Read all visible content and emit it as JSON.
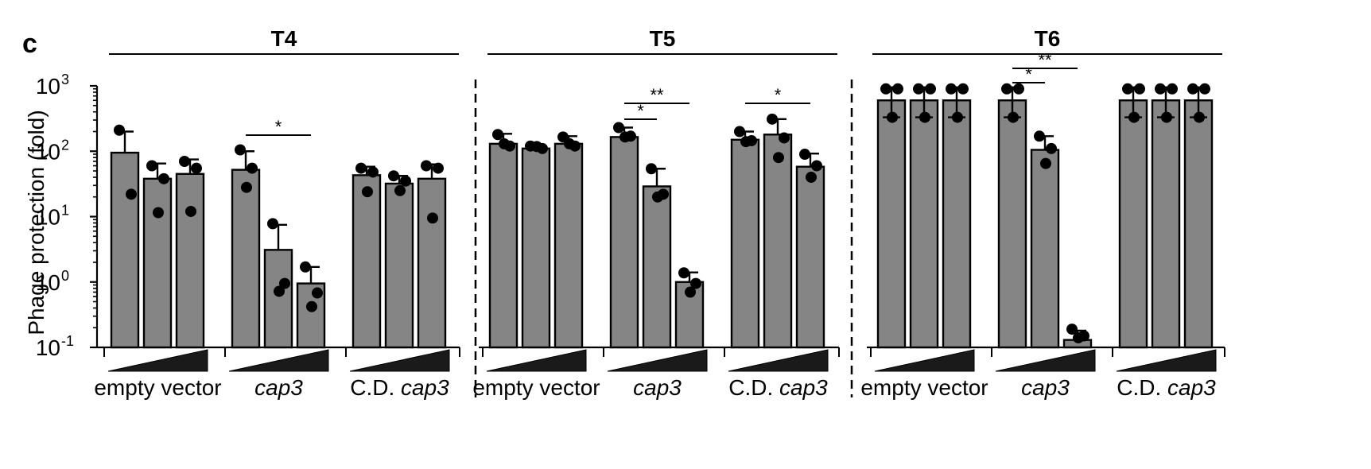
{
  "panel_letter": "c",
  "ylabel": "Phage protection (fold)",
  "ytick_labels": [
    {
      "base": "10",
      "exp": "3"
    },
    {
      "base": "10",
      "exp": "2"
    },
    {
      "base": "10",
      "exp": "1"
    },
    {
      "base": "10",
      "exp": "0"
    },
    {
      "base": "10",
      "exp": "-1"
    }
  ],
  "colors": {
    "bar": "#858585",
    "outline": "#000000",
    "wedge": "#1a1a1a"
  },
  "chart_data": {
    "type": "bar",
    "yscale": "log",
    "ylim": [
      0.1,
      1000
    ],
    "yticks": [
      1000,
      100,
      10,
      1,
      0.1
    ],
    "ylabel": "Phage protection (fold)",
    "panels": [
      {
        "title": "T4",
        "groups": [
          {
            "label_plain": "empty vector",
            "label_italic": "",
            "bars": [
              {
                "mean": 95,
                "err_hi": 200,
                "points": [
                  210,
                  22
                ]
              },
              {
                "mean": 38,
                "err_hi": 65,
                "points": [
                  60,
                  38,
                  11.5
                ]
              },
              {
                "mean": 45,
                "err_hi": 75,
                "points": [
                  70,
                  55,
                  12
                ]
              }
            ]
          },
          {
            "label_plain": "",
            "label_italic": "cap3",
            "bars": [
              {
                "mean": 52,
                "err_hi": 100,
                "points": [
                  105,
                  55,
                  28
                ]
              },
              {
                "mean": 3.1,
                "err_hi": 7.5,
                "points": [
                  7.8,
                  0.95,
                  0.72
                ]
              },
              {
                "mean": 0.95,
                "err_hi": 1.7,
                "points": [
                  1.7,
                  0.68,
                  0.42
                ]
              }
            ]
          },
          {
            "label_plain": "C.D. ",
            "label_italic": "cap3",
            "bars": [
              {
                "mean": 43,
                "err_hi": 58,
                "points": [
                  55,
                  48,
                  24
                ]
              },
              {
                "mean": 32,
                "err_hi": 42,
                "points": [
                  42,
                  35,
                  25
                ]
              },
              {
                "mean": 38,
                "err_hi": 63,
                "points": [
                  60,
                  55,
                  9.5
                ]
              }
            ]
          }
        ],
        "significance": [
          {
            "label": "*",
            "from": [
              1,
              0
            ],
            "to": [
              1,
              2
            ]
          }
        ]
      },
      {
        "title": "T5",
        "groups": [
          {
            "label_plain": "empty vector",
            "label_italic": "",
            "bars": [
              {
                "mean": 130,
                "err_hi": 185,
                "points": [
                  180,
                  120,
                  130
                ]
              },
              {
                "mean": 110,
                "err_hi": 125,
                "points": [
                  120,
                  110,
                  118
                ]
              },
              {
                "mean": 130,
                "err_hi": 170,
                "points": [
                  165,
                  120,
                  130
                ]
              }
            ]
          },
          {
            "label_plain": "",
            "label_italic": "cap3",
            "bars": [
              {
                "mean": 165,
                "err_hi": 230,
                "points": [
                  230,
                  170,
                  165
                ]
              },
              {
                "mean": 29,
                "err_hi": 54,
                "points": [
                  54,
                  22,
                  20
                ]
              },
              {
                "mean": 1.0,
                "err_hi": 1.4,
                "points": [
                  1.38,
                  0.95,
                  0.7
                ]
              }
            ]
          },
          {
            "label_plain": "C.D. ",
            "label_italic": "cap3",
            "bars": [
              {
                "mean": 150,
                "err_hi": 200,
                "points": [
                  200,
                  145,
                  140
                ]
              },
              {
                "mean": 180,
                "err_hi": 310,
                "points": [
                  310,
                  160,
                  80
                ]
              },
              {
                "mean": 58,
                "err_hi": 92,
                "points": [
                  90,
                  60,
                  40
                ]
              }
            ]
          }
        ],
        "significance": [
          {
            "label": "**",
            "from": [
              1,
              0
            ],
            "to": [
              1,
              2
            ]
          },
          {
            "label": "*",
            "from": [
              1,
              0
            ],
            "to": [
              1,
              1
            ]
          },
          {
            "label": "*",
            "from": [
              2,
              0
            ],
            "to": [
              2,
              2
            ]
          }
        ]
      },
      {
        "title": "T6",
        "groups": [
          {
            "label_plain": "empty vector",
            "label_italic": "",
            "bars": [
              {
                "mean": 600,
                "err_hi": 950,
                "points": [
                  900,
                  900,
                  330
                ]
              },
              {
                "mean": 600,
                "err_hi": 950,
                "points": [
                  900,
                  900,
                  330
                ]
              },
              {
                "mean": 600,
                "err_hi": 950,
                "points": [
                  900,
                  900,
                  330
                ]
              }
            ]
          },
          {
            "label_plain": "",
            "label_italic": "cap3",
            "bars": [
              {
                "mean": 600,
                "err_hi": 950,
                "points": [
                  900,
                  900,
                  330
                ]
              },
              {
                "mean": 105,
                "err_hi": 170,
                "points": [
                  170,
                  110,
                  65
                ]
              },
              {
                "mean": 0.13,
                "err_hi": 0.18,
                "points": [
                  0.19,
                  0.15,
                  0.14
                ]
              }
            ]
          },
          {
            "label_plain": "C.D. ",
            "label_italic": "cap3",
            "bars": [
              {
                "mean": 600,
                "err_hi": 950,
                "points": [
                  900,
                  900,
                  330
                ]
              },
              {
                "mean": 600,
                "err_hi": 950,
                "points": [
                  900,
                  900,
                  330
                ]
              },
              {
                "mean": 600,
                "err_hi": 950,
                "points": [
                  900,
                  900,
                  330
                ]
              }
            ]
          }
        ],
        "significance": [
          {
            "label": "**",
            "from": [
              1,
              0
            ],
            "to": [
              1,
              2
            ]
          },
          {
            "label": "*",
            "from": [
              1,
              0
            ],
            "to": [
              1,
              1
            ]
          }
        ]
      }
    ]
  }
}
